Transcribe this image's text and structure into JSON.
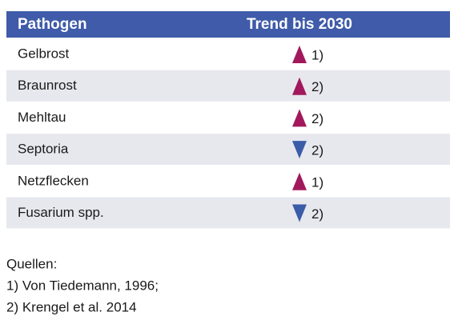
{
  "table": {
    "header": [
      "Pathogen",
      "Trend bis 2030"
    ],
    "rows": [
      {
        "pathogen": "Gelbrost",
        "trend": "up",
        "note": "1)"
      },
      {
        "pathogen": "Braunrost",
        "trend": "up",
        "note": "2)"
      },
      {
        "pathogen": "Mehltau",
        "trend": "up",
        "note": "2)"
      },
      {
        "pathogen": "Septoria",
        "trend": "down",
        "note": "2)"
      },
      {
        "pathogen": "Netzflecken",
        "trend": "up",
        "note": "1)"
      },
      {
        "pathogen": "Fusarium spp.",
        "trend": "down",
        "note": "2)"
      }
    ],
    "colors": {
      "header": "#3f5ba9",
      "stripe": "#e7e8ee",
      "up": "#a2185c",
      "down": "#3b5ca9"
    }
  },
  "sources": {
    "title": "Quellen:",
    "items": [
      "1) Von Tiedemann, 1996;",
      "2) Krengel et al. 2014"
    ]
  }
}
